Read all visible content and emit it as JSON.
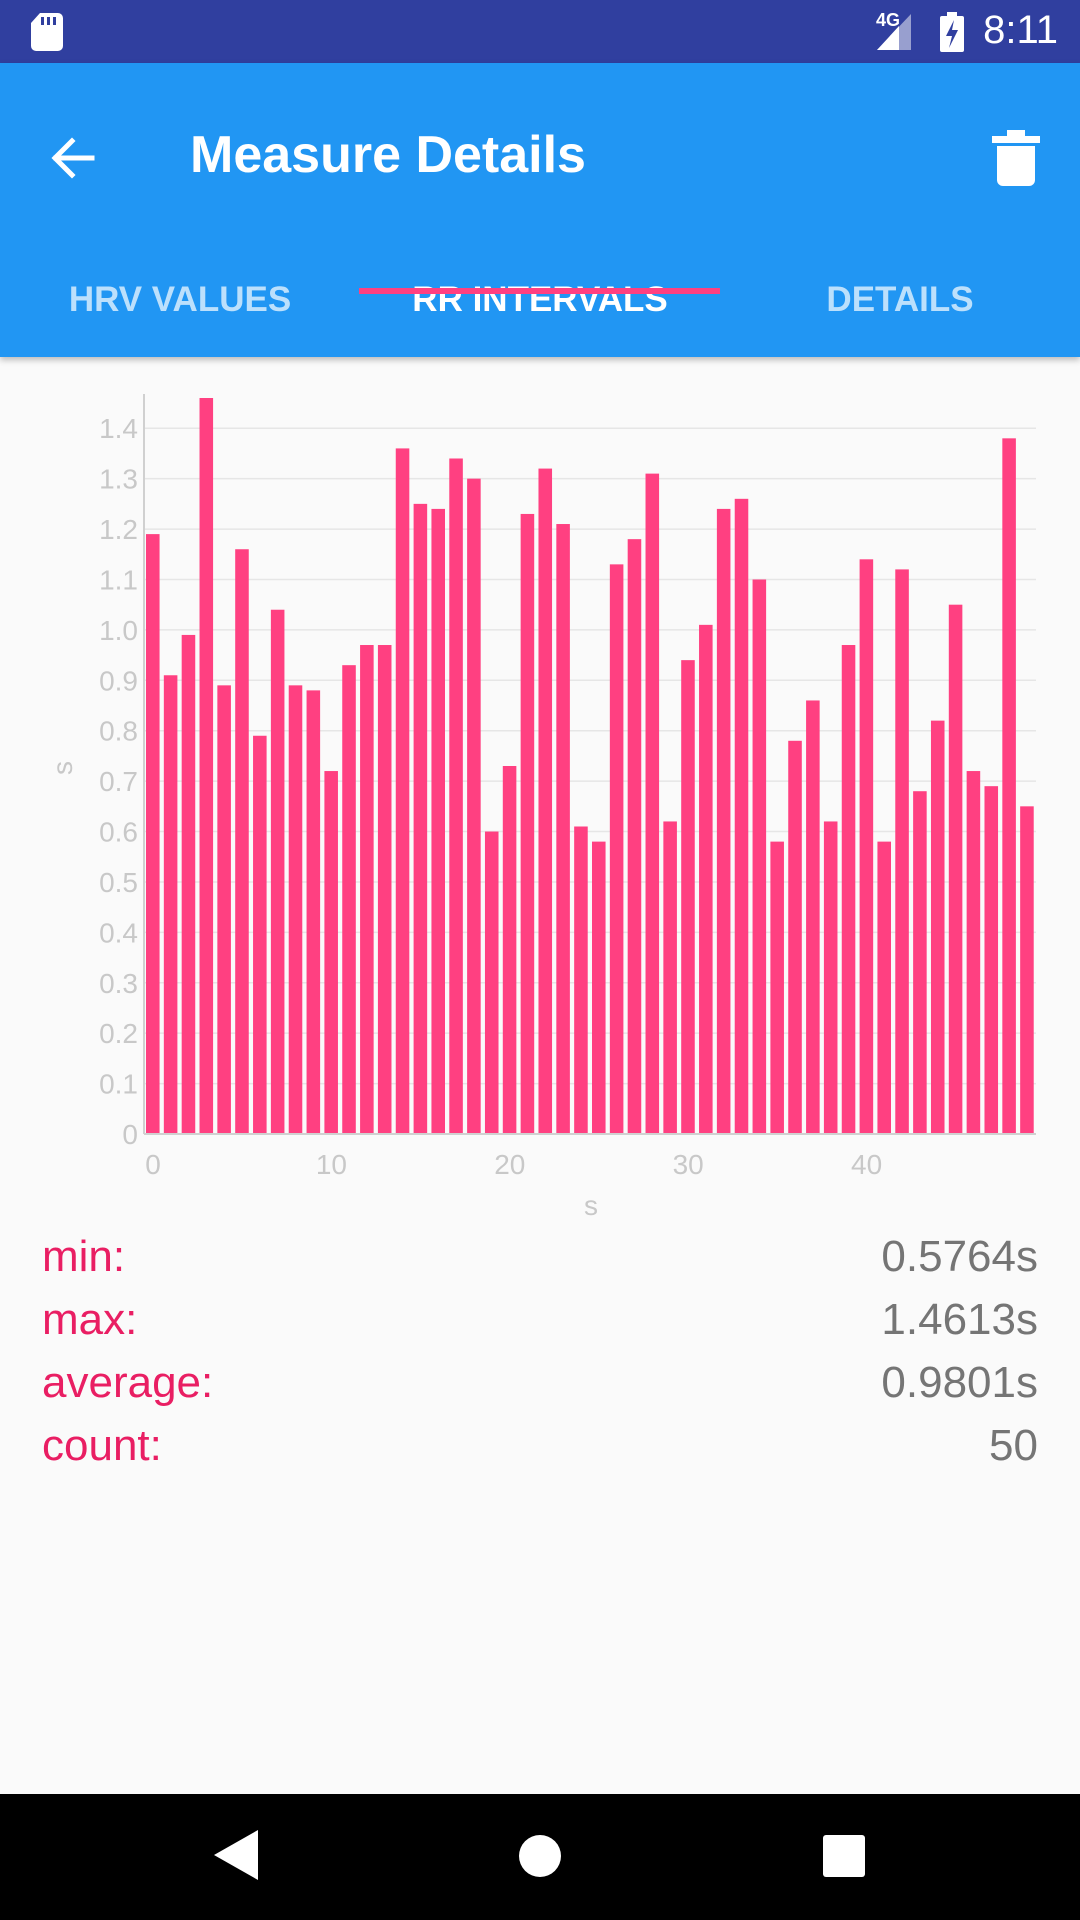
{
  "status_bar": {
    "network": "4G",
    "time": "8:11",
    "icons": [
      "sd-card-icon",
      "signal-icon",
      "battery-charging-icon"
    ]
  },
  "app_bar": {
    "title": "Measure Details",
    "icons": [
      "arrow-left-icon",
      "trash-icon"
    ]
  },
  "tabs": [
    {
      "label": "HRV VALUES",
      "active": false
    },
    {
      "label": "RR INTERVALS",
      "active": true
    },
    {
      "label": "DETAILS",
      "active": false
    }
  ],
  "colors": {
    "status_bar": "#303f9f",
    "app_bar": "#2196f3",
    "accent": "#ff4081",
    "bar": "#ff4081",
    "stat_label": "#e91e63",
    "stat_value": "#757575"
  },
  "chart_data": {
    "type": "bar",
    "xlabel": "s",
    "ylabel": "s",
    "x_ticks": [
      0,
      10,
      20,
      30,
      40
    ],
    "y_ticks": [
      0,
      0.1,
      0.2,
      0.3,
      0.4,
      0.5,
      0.6,
      0.7,
      0.8,
      0.9,
      1.0,
      1.1,
      1.2,
      1.3,
      1.4
    ],
    "ylim": [
      0,
      1.46
    ],
    "xlim": [
      0,
      50
    ],
    "grid": true,
    "values": [
      1.19,
      0.91,
      0.99,
      1.46,
      0.89,
      1.16,
      0.79,
      1.04,
      0.89,
      0.88,
      0.72,
      0.93,
      0.97,
      0.97,
      1.36,
      1.25,
      1.24,
      1.34,
      1.3,
      0.6,
      0.73,
      1.23,
      1.32,
      1.21,
      0.61,
      0.58,
      1.13,
      1.18,
      1.31,
      0.62,
      0.94,
      1.01,
      1.24,
      1.26,
      1.1,
      0.58,
      0.78,
      0.86,
      0.62,
      0.97,
      1.14,
      0.58,
      1.12,
      0.68,
      0.82,
      1.05,
      0.72,
      0.69,
      1.38,
      0.65
    ]
  },
  "stats": [
    {
      "label": "min:",
      "value": "0.5764s"
    },
    {
      "label": "max:",
      "value": "1.4613s"
    },
    {
      "label": "average:",
      "value": "0.9801s"
    },
    {
      "label": "count:",
      "value": "50"
    }
  ],
  "nav_bar": {
    "icons": [
      "nav-back-icon",
      "nav-home-icon",
      "nav-recents-icon"
    ]
  }
}
